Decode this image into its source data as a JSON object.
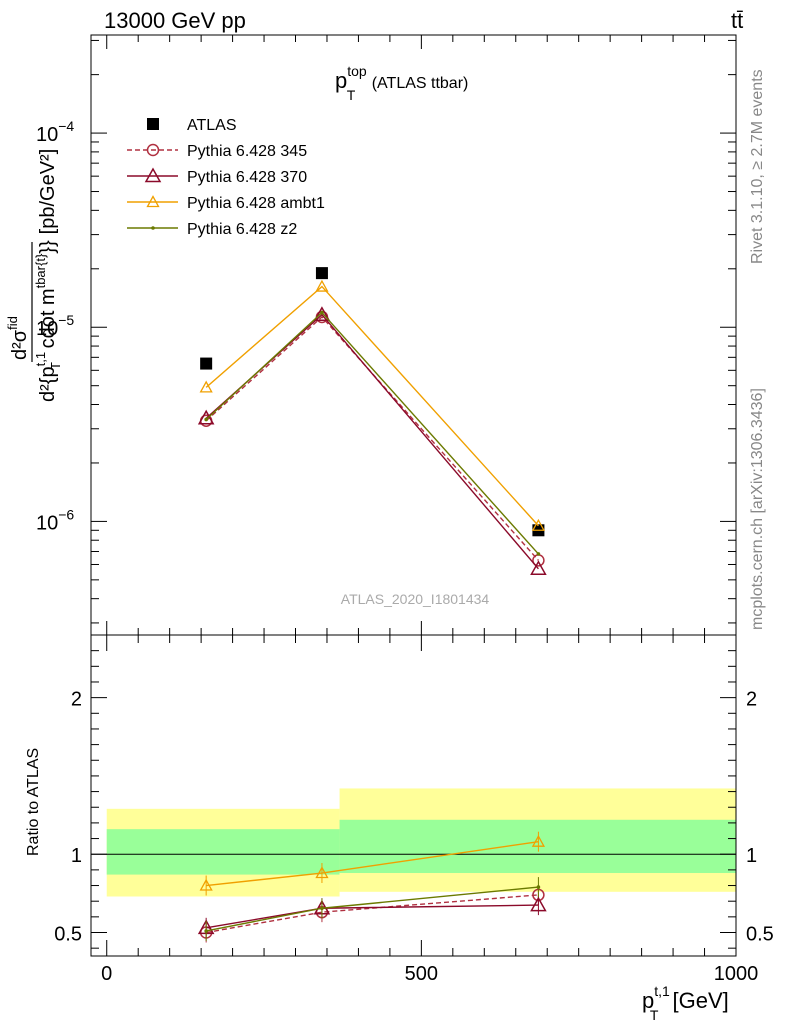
{
  "header": {
    "energy_label": "13000 GeV pp",
    "process_label": "tt̄"
  },
  "side_labels": {
    "rivet": "Rivet 3.1.10, ≥ 2.7M events",
    "mcplots": "mcplots.cern.ch [arXiv:1306.3436]"
  },
  "watermark": "ATLAS_2020_I1801434",
  "colors": {
    "atlas": "#000000",
    "p345": "#b03040",
    "p370": "#8b0a2a",
    "ambt1": "#f0a000",
    "z2": "#6b7a00",
    "band_inner": "#99ff99",
    "band_outer": "#ffff99"
  },
  "chart_data": [
    {
      "type": "scatter",
      "panel": "main",
      "title": "p_T^top (ATLAS ttbar)",
      "title_parts": {
        "base": "p",
        "sup": "top",
        "sub": "T",
        "suffix": " (ATLAS ttbar)"
      },
      "ylabel": "d²σ^fid / d²{p_T^t,1 cdot m^tbar{t}} [pb/GeV²]",
      "ylabel_parts": {
        "num": "d²σ",
        "num_sup": "fid",
        "den_a": "d²{p",
        "den_sub": "T",
        "den_sup": "t,1",
        "den_b": " cdot m",
        "den_sup2": "tbar{t}",
        "den_c": "}}",
        "unit": "[pb/GeV²]"
      },
      "yscale": "log",
      "ylim": [
        2.6e-07,
        0.00032
      ],
      "xlim": [
        -25,
        1000
      ],
      "ytick_labels": [
        {
          "value": 1e-06,
          "base": "10",
          "exp": "−6"
        },
        {
          "value": 1e-05,
          "base": "10",
          "exp": "−5"
        },
        {
          "value": 0.0001,
          "base": "10",
          "exp": "−4"
        }
      ],
      "x": [
        158,
        342,
        686
      ],
      "series": [
        {
          "name": "ATLAS",
          "marker": "square",
          "values": [
            6.5e-06,
            1.9e-05,
            9e-07
          ]
        },
        {
          "name": "Pythia 6.428 345",
          "marker": "circle",
          "linestyle": "dashed",
          "values": [
            3.3e-06,
            1.13e-05,
            6.3e-07
          ]
        },
        {
          "name": "Pythia 6.428 370",
          "marker": "triangle",
          "linestyle": "solid",
          "values": [
            3.4e-06,
            1.16e-05,
            5.7e-07
          ]
        },
        {
          "name": "Pythia 6.428 ambt1",
          "marker": "triangle-small",
          "linestyle": "solid",
          "values": [
            4.9e-06,
            1.62e-05,
            9.5e-07
          ]
        },
        {
          "name": "Pythia 6.428 z2",
          "marker": "dot",
          "linestyle": "solid",
          "values": [
            3.35e-06,
            1.19e-05,
            6.8e-07
          ]
        }
      ],
      "legend_position": "top-left"
    },
    {
      "type": "line",
      "panel": "ratio",
      "ylabel": "Ratio to ATLAS",
      "ylim": [
        0.35,
        2.4
      ],
      "yticks": [
        0.5,
        1,
        2
      ],
      "ytick_labels": [
        "0.5",
        "1",
        "2"
      ],
      "xlim": [
        -25,
        1000
      ],
      "xticks": [
        0,
        500,
        1000
      ],
      "xtick_labels": [
        "0",
        "500",
        "1000"
      ],
      "xlabel": "p_T^t,1 [GeV]",
      "xlabel_parts": {
        "base": "p",
        "sup": "t,1",
        "sub": "T",
        "suffix": " [GeV]"
      },
      "x": [
        158,
        342,
        686
      ],
      "bins": [
        [
          0,
          370
        ],
        [
          370,
          1000
        ]
      ],
      "bands": {
        "inner": [
          [
            0.87,
            1.16
          ],
          [
            0.88,
            1.22
          ]
        ],
        "outer": [
          [
            0.73,
            1.29
          ],
          [
            0.76,
            1.42
          ]
        ]
      },
      "series": [
        {
          "name": "Pythia 6.428 345",
          "values": [
            0.5,
            0.63,
            0.74
          ]
        },
        {
          "name": "Pythia 6.428 370",
          "values": [
            0.53,
            0.655,
            0.675
          ]
        },
        {
          "name": "Pythia 6.428 ambt1",
          "values": [
            0.8,
            0.88,
            1.08
          ]
        },
        {
          "name": "Pythia 6.428 z2",
          "values": [
            0.51,
            0.655,
            0.79
          ]
        }
      ]
    }
  ]
}
